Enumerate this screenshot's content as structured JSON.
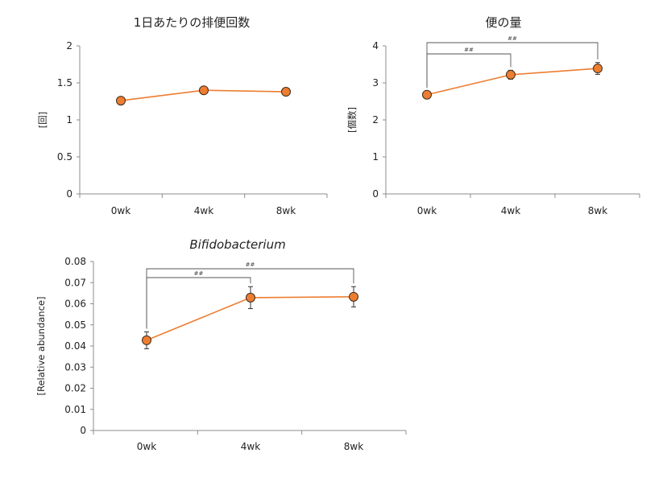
{
  "chart_data": [
    {
      "type": "line",
      "title": "1日あたりの排便回数",
      "ylabel": "[回]",
      "categories": [
        "0wk",
        "4wk",
        "8wk"
      ],
      "ylim": [
        0,
        2
      ],
      "yticks": [
        "0",
        "0.5",
        "1",
        "1.5",
        "2"
      ],
      "series": [
        {
          "values": [
            1.26,
            1.4,
            1.38
          ],
          "errors": [
            0.04,
            0.05,
            0.05
          ],
          "color": "#ed7d31"
        }
      ],
      "annotations": []
    },
    {
      "type": "line",
      "title": "便の量",
      "ylabel": "[個数]",
      "categories": [
        "0wk",
        "4wk",
        "8wk"
      ],
      "ylim": [
        0,
        4
      ],
      "yticks": [
        "0",
        "1",
        "2",
        "3",
        "4"
      ],
      "series": [
        {
          "values": [
            2.68,
            3.22,
            3.39
          ],
          "errors": [
            0.1,
            0.12,
            0.16
          ],
          "color": "#ed7d31"
        }
      ],
      "annotations": [
        {
          "from": "0wk",
          "to": "4wk",
          "label": "##"
        },
        {
          "from": "0wk",
          "to": "8wk",
          "label": "##"
        }
      ]
    },
    {
      "type": "line",
      "title": "Bifidobacterium",
      "ylabel": "[Relative abundance]",
      "categories": [
        "0wk",
        "4wk",
        "8wk"
      ],
      "ylim": [
        0,
        0.08
      ],
      "yticks": [
        "0",
        "0.01",
        "0.02",
        "0.03",
        "0.04",
        "0.05",
        "0.06",
        "0.07",
        "0.08"
      ],
      "series": [
        {
          "values": [
            0.0427,
            0.0629,
            0.0633
          ],
          "errors": [
            0.004,
            0.0052,
            0.0048
          ],
          "color": "#ed7d31"
        }
      ],
      "annotations": [
        {
          "from": "0wk",
          "to": "4wk",
          "label": "##"
        },
        {
          "from": "0wk",
          "to": "8wk",
          "label": "##"
        }
      ]
    }
  ]
}
